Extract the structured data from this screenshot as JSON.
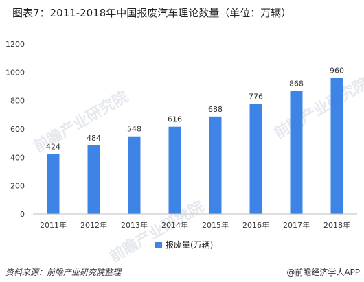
{
  "title": "图表7：2011-2018年中国报废汽车理论数量（单位：万辆）",
  "footer": {
    "source": "资料来源：前瞻产业研究院整理",
    "brand": "@前瞻经济学人APP"
  },
  "watermark": "前瞻产业研究院",
  "chart_data": {
    "type": "bar",
    "categories": [
      "2011年",
      "2012年",
      "2013年",
      "2014年",
      "2015年",
      "2016年",
      "2017年",
      "2018年"
    ],
    "series": [
      {
        "name": "报废量(万辆)",
        "values": [
          424,
          484,
          548,
          616,
          688,
          776,
          868,
          960
        ],
        "color": "#3D84E6"
      }
    ],
    "ylim": [
      0,
      1200
    ],
    "yticks": [
      0,
      200,
      400,
      600,
      800,
      1000,
      1200
    ],
    "grid": false,
    "legend": "bottom"
  }
}
